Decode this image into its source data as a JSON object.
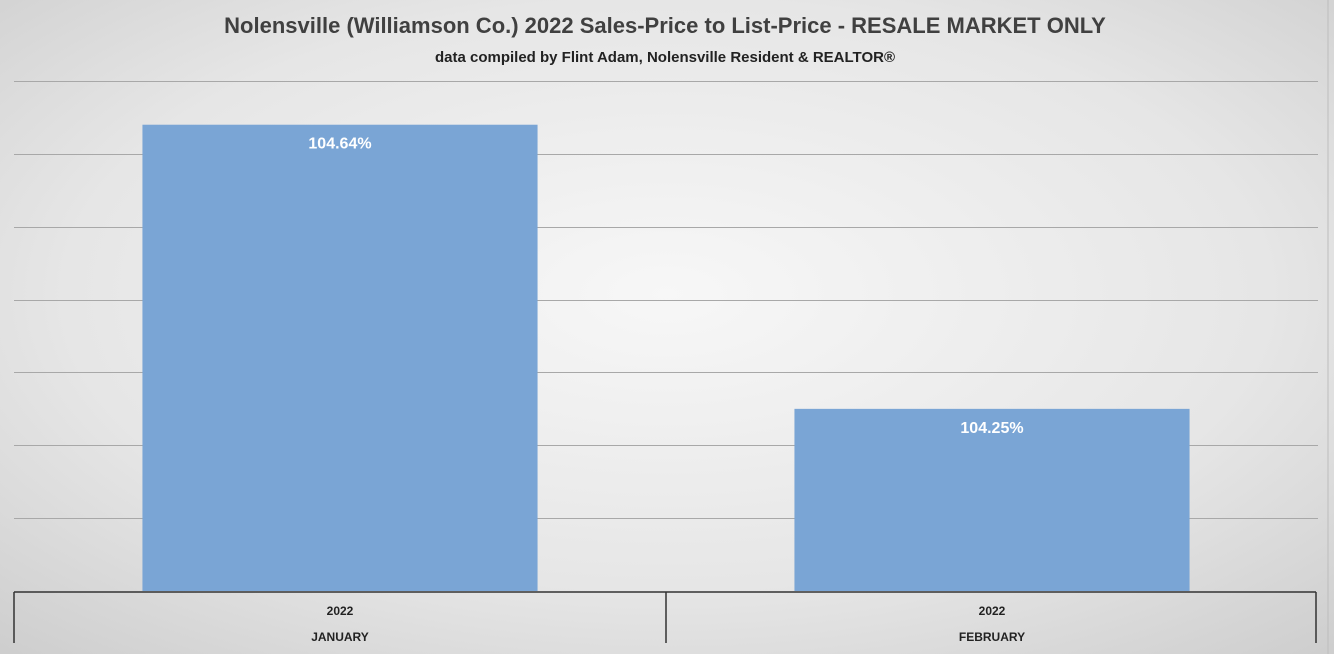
{
  "chart_data": {
    "type": "bar",
    "title": "Nolensville (Williamson Co.) 2022 Sales-Price to List-Price - RESALE MARKET ONLY",
    "subtitle": "data compiled by Flint Adam, Nolensville Resident & REALTOR®",
    "categories": [
      {
        "year": "2022",
        "month": "JANUARY"
      },
      {
        "year": "2022",
        "month": "FEBRUARY"
      }
    ],
    "values": [
      104.64,
      104.25
    ],
    "data_labels": [
      "104.64%",
      "104.25%"
    ],
    "ylim": [
      104.0,
      104.7
    ],
    "grid": true,
    "legend": "none",
    "colors": {
      "bar": "#7aa5d5",
      "background_light": "#f4f4f4",
      "background_dark": "#cfcfcf",
      "title": "#404040",
      "label_text": "#ffffff"
    }
  }
}
